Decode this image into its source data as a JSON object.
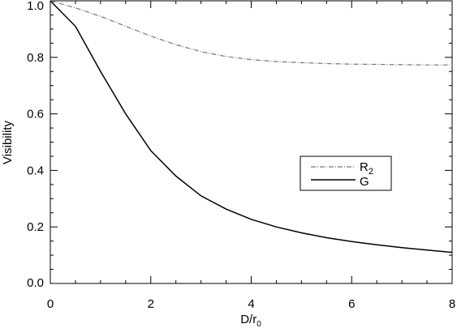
{
  "chart_data": {
    "type": "line",
    "title": "",
    "xlabel": "D/r",
    "xlabel_subscript": "0",
    "ylabel": "Visibility",
    "xlim": [
      0,
      8
    ],
    "ylim": [
      0,
      1.0
    ],
    "x_ticks": [
      "0",
      "2",
      "4",
      "6",
      "8"
    ],
    "y_ticks": [
      "0.0",
      "0.2",
      "0.4",
      "0.6",
      "0.8",
      "1.0"
    ],
    "grid": false,
    "legend_position": "center-right",
    "series": [
      {
        "name": "R",
        "name_subscript": "2",
        "color": "#777777",
        "style": "dash-dot",
        "x": [
          0,
          0.5,
          1.0,
          1.5,
          2.0,
          2.5,
          3.0,
          3.5,
          4.0,
          4.5,
          5.0,
          5.5,
          6.0,
          6.5,
          7.0,
          7.5,
          8.0
        ],
        "y": [
          1.0,
          0.975,
          0.945,
          0.91,
          0.875,
          0.845,
          0.82,
          0.803,
          0.792,
          0.785,
          0.781,
          0.778,
          0.776,
          0.775,
          0.774,
          0.773,
          0.773
        ]
      },
      {
        "name": "G",
        "color": "#000000",
        "style": "solid",
        "x": [
          0,
          0.5,
          1.0,
          1.5,
          2.0,
          2.5,
          3.0,
          3.5,
          4.0,
          4.5,
          5.0,
          5.5,
          6.0,
          6.5,
          7.0,
          7.5,
          8.0
        ],
        "y": [
          1.0,
          0.91,
          0.75,
          0.6,
          0.47,
          0.38,
          0.31,
          0.263,
          0.227,
          0.2,
          0.179,
          0.162,
          0.148,
          0.137,
          0.127,
          0.118,
          0.11
        ]
      }
    ]
  }
}
